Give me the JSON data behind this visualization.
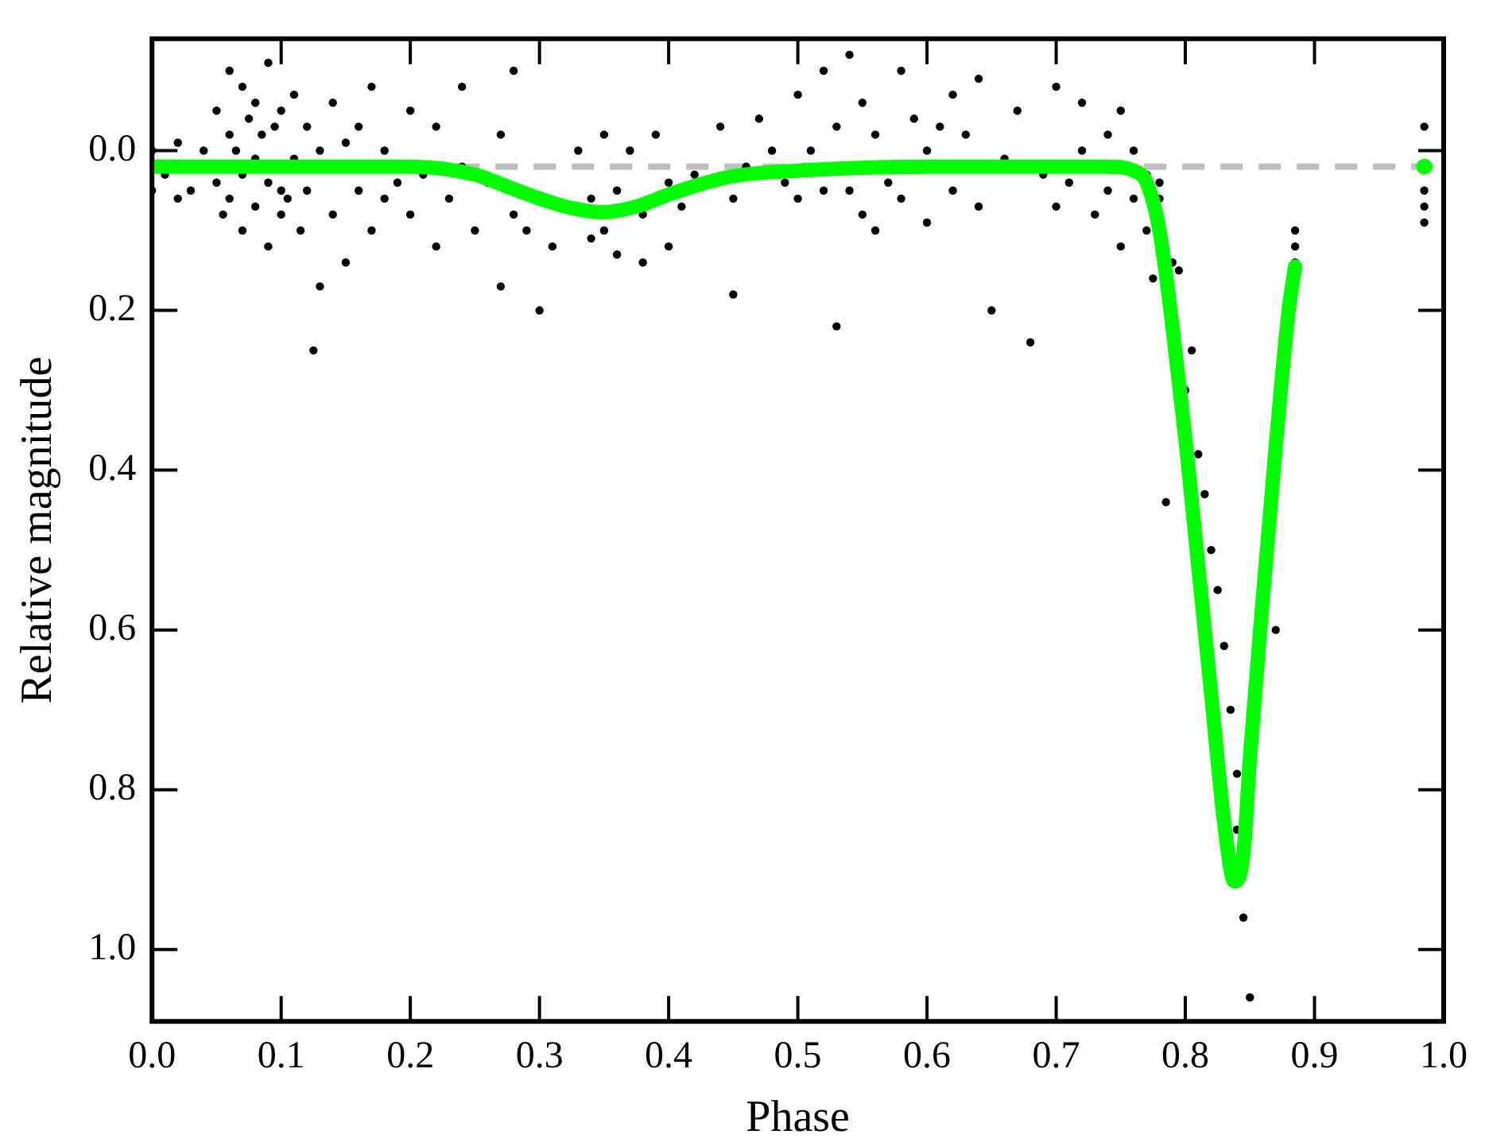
{
  "chart_data": {
    "type": "scatter",
    "xlabel": "Phase",
    "ylabel": "Relative magnitude",
    "xlim": [
      0,
      1
    ],
    "ylim": [
      1.09,
      -0.14
    ],
    "xticks": [
      {
        "value": 0,
        "label": "0.0"
      },
      0.1,
      0.2,
      0.3,
      0.4,
      0.5,
      0.6,
      0.7,
      0.8,
      0.9,
      {
        "value": 1,
        "label": "1.0"
      }
    ],
    "yticks": [
      {
        "value": 0,
        "label": "0.0"
      },
      0.2,
      0.4,
      0.6,
      0.8,
      {
        "value": 1,
        "label": "1.0"
      }
    ],
    "grid": false,
    "legend": false,
    "marker": "circle",
    "ref_lines": [
      {
        "axis": "y",
        "value": 0.02,
        "color": "#c0c0c0",
        "line_style": "dashed"
      }
    ],
    "series": [
      {
        "type": "scatter",
        "color": "#000000",
        "x": [
          0.0,
          0.0,
          0.01,
          0.02,
          0.02,
          0.03,
          0.04,
          0.05,
          0.05,
          0.055,
          0.06,
          0.06,
          0.06,
          0.065,
          0.07,
          0.07,
          0.07,
          0.075,
          0.08,
          0.08,
          0.08,
          0.085,
          0.09,
          0.09,
          0.09,
          0.095,
          0.1,
          0.1,
          0.1,
          0.105,
          0.11,
          0.11,
          0.115,
          0.12,
          0.12,
          0.125,
          0.13,
          0.13,
          0.14,
          0.14,
          0.15,
          0.15,
          0.16,
          0.16,
          0.17,
          0.17,
          0.18,
          0.18,
          0.19,
          0.2,
          0.2,
          0.21,
          0.22,
          0.22,
          0.23,
          0.24,
          0.24,
          0.25,
          0.26,
          0.27,
          0.27,
          0.28,
          0.28,
          0.29,
          0.3,
          0.31,
          0.33,
          0.34,
          0.34,
          0.35,
          0.35,
          0.36,
          0.36,
          0.37,
          0.38,
          0.38,
          0.39,
          0.4,
          0.4,
          0.41,
          0.42,
          0.44,
          0.45,
          0.45,
          0.46,
          0.47,
          0.48,
          0.49,
          0.5,
          0.5,
          0.51,
          0.52,
          0.52,
          0.53,
          0.53,
          0.54,
          0.54,
          0.55,
          0.55,
          0.56,
          0.56,
          0.57,
          0.58,
          0.58,
          0.59,
          0.6,
          0.6,
          0.61,
          0.62,
          0.62,
          0.63,
          0.64,
          0.64,
          0.65,
          0.66,
          0.67,
          0.68,
          0.69,
          0.7,
          0.7,
          0.71,
          0.72,
          0.72,
          0.73,
          0.74,
          0.74,
          0.75,
          0.75,
          0.76,
          0.76,
          0.77,
          0.77,
          0.775,
          0.78,
          0.78,
          0.785,
          0.79,
          0.795,
          0.8,
          0.805,
          0.81,
          0.815,
          0.82,
          0.825,
          0.83,
          0.835,
          0.84,
          0.84,
          0.845,
          0.85,
          0.87,
          0.885,
          0.885,
          0.885,
          0.985,
          0.985,
          0.985,
          0.985
        ],
        "values": [
          0.0,
          0.05,
          0.03,
          -0.01,
          0.06,
          0.05,
          0.0,
          -0.05,
          0.04,
          0.08,
          -0.1,
          -0.02,
          0.06,
          0.0,
          -0.08,
          0.03,
          0.1,
          -0.04,
          -0.06,
          0.01,
          0.07,
          -0.02,
          -0.11,
          0.04,
          0.12,
          -0.03,
          -0.05,
          0.05,
          0.08,
          0.06,
          -0.07,
          0.01,
          0.1,
          -0.03,
          0.05,
          0.25,
          0.0,
          0.17,
          -0.06,
          0.08,
          -0.01,
          0.14,
          -0.03,
          0.05,
          0.1,
          -0.08,
          0.0,
          0.06,
          0.04,
          -0.05,
          0.08,
          0.03,
          -0.03,
          0.12,
          0.06,
          -0.08,
          0.02,
          0.1,
          0.04,
          -0.02,
          0.17,
          -0.1,
          0.08,
          0.1,
          0.2,
          0.12,
          0.0,
          0.06,
          0.11,
          -0.02,
          0.1,
          0.05,
          0.13,
          0.0,
          0.08,
          0.14,
          -0.02,
          0.04,
          0.12,
          0.07,
          0.03,
          -0.03,
          0.06,
          0.18,
          0.02,
          -0.04,
          0.0,
          0.04,
          -0.07,
          0.06,
          0.0,
          -0.1,
          0.05,
          -0.03,
          0.22,
          -0.12,
          0.05,
          -0.06,
          0.08,
          -0.02,
          0.1,
          0.04,
          -0.1,
          0.06,
          -0.04,
          0.0,
          0.09,
          -0.03,
          -0.07,
          0.05,
          -0.02,
          -0.09,
          0.07,
          0.2,
          0.01,
          -0.05,
          0.24,
          0.03,
          0.07,
          -0.08,
          0.04,
          0.0,
          -0.06,
          0.08,
          0.05,
          -0.02,
          0.12,
          -0.05,
          0.06,
          0.0,
          0.1,
          0.03,
          0.16,
          0.04,
          0.06,
          0.44,
          0.14,
          0.15,
          0.3,
          0.25,
          0.38,
          0.43,
          0.5,
          0.55,
          0.62,
          0.7,
          0.78,
          0.85,
          0.96,
          1.06,
          0.6,
          0.1,
          0.12,
          0.14,
          -0.03,
          0.05,
          0.07,
          0.09
        ]
      },
      {
        "type": "line",
        "color": "#00ff00",
        "marker": "none",
        "x": [
          0,
          0.2,
          0.25,
          0.275,
          0.3,
          0.325,
          0.35,
          0.375,
          0.4,
          0.425,
          0.45,
          0.5,
          0.6,
          0.74,
          0.76,
          0.77,
          0.78,
          0.79,
          0.8,
          0.81,
          0.82,
          0.83,
          0.838,
          0.845,
          0.85,
          0.86,
          0.87,
          0.88,
          0.885
        ],
        "values": [
          0.02,
          0.02,
          0.03,
          0.045,
          0.06,
          0.072,
          0.077,
          0.07,
          0.055,
          0.042,
          0.032,
          0.025,
          0.02,
          0.02,
          0.025,
          0.04,
          0.1,
          0.22,
          0.36,
          0.52,
          0.68,
          0.84,
          0.915,
          0.88,
          0.76,
          0.56,
          0.37,
          0.2,
          0.145
        ]
      },
      {
        "type": "scatter",
        "color": "#00ff00",
        "x": [
          0.985
        ],
        "values": [
          0.02
        ]
      }
    ]
  }
}
